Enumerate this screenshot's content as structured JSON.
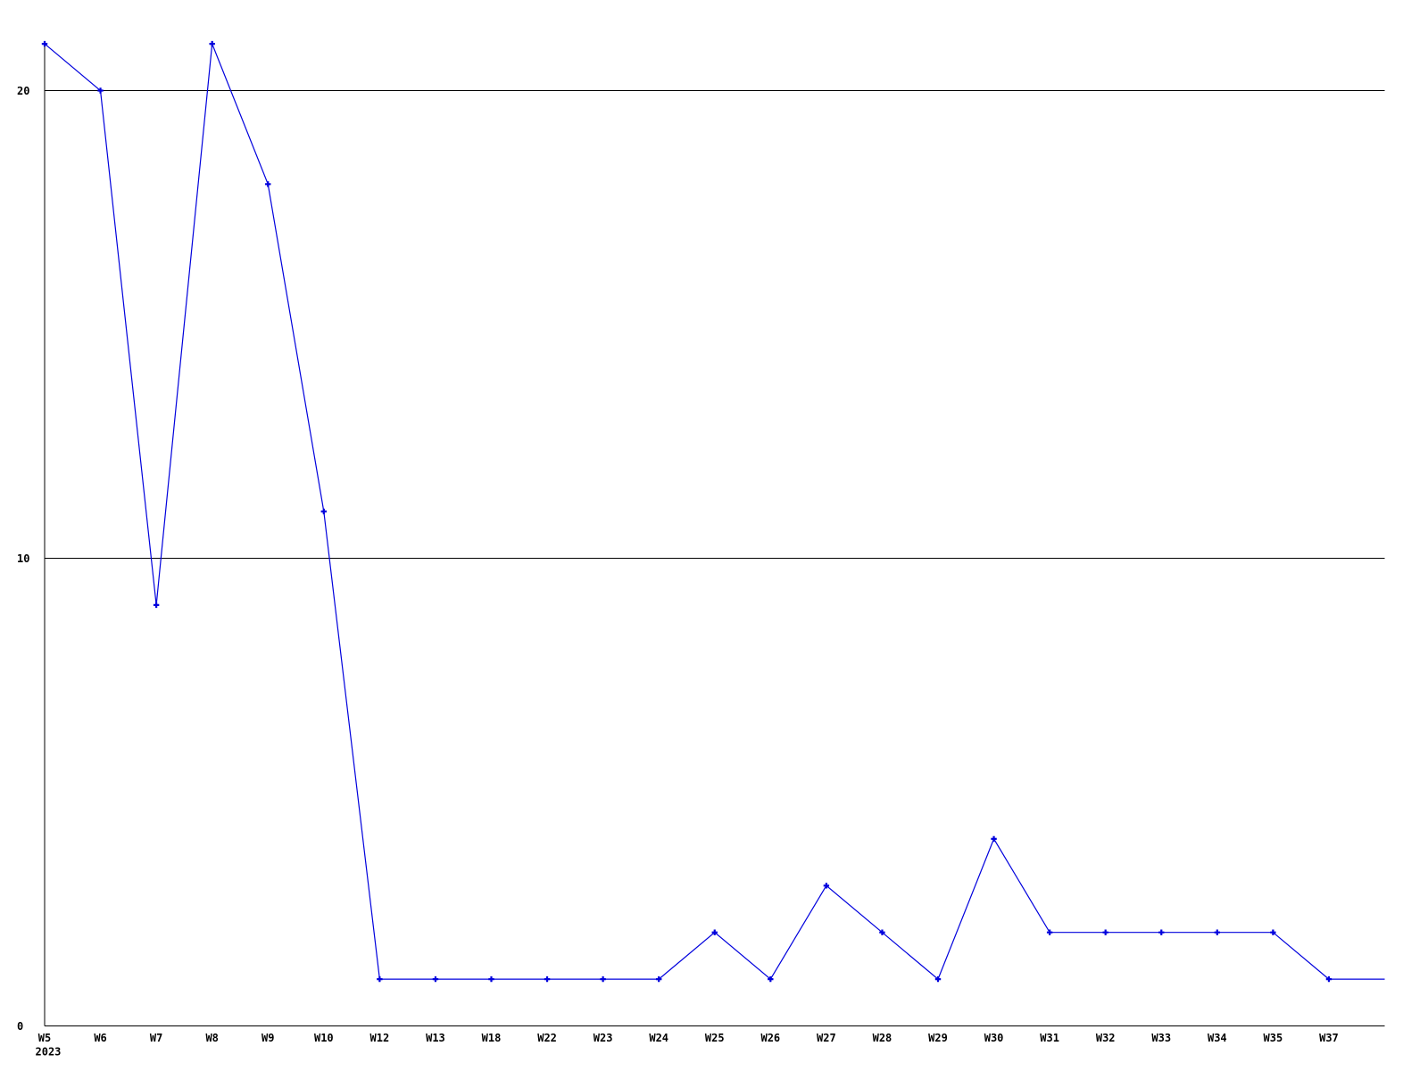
{
  "chart_data": {
    "type": "line",
    "title": "",
    "xlabel": "",
    "ylabel": "",
    "year_label": "2023",
    "categories": [
      "W5",
      "W6",
      "W7",
      "W8",
      "W9",
      "W10",
      "W12",
      "W13",
      "W18",
      "W22",
      "W23",
      "W24",
      "W25",
      "W26",
      "W27",
      "W28",
      "W29",
      "W30",
      "W31",
      "W32",
      "W33",
      "W34",
      "W35",
      "W37"
    ],
    "values": [
      21,
      20,
      9,
      21,
      18,
      11,
      1,
      1,
      1,
      1,
      1,
      1,
      2,
      1,
      3,
      2,
      1,
      4,
      2,
      2,
      2,
      2,
      2,
      1
    ],
    "line_extends_to_right_edge_at_value": 1,
    "ylim": [
      0,
      21
    ],
    "yticks": [
      {
        "value": 0,
        "label": "0"
      },
      {
        "value": 10,
        "label": "10"
      },
      {
        "value": 20,
        "label": "20"
      }
    ],
    "grid": {
      "horizontal_lines_at": [
        10,
        20
      ],
      "vertical": false
    },
    "legend": "none",
    "marker": "plus",
    "colors": {
      "line": "#0000dd",
      "axis": "#000000",
      "text": "#000000",
      "background": "#ffffff"
    }
  }
}
